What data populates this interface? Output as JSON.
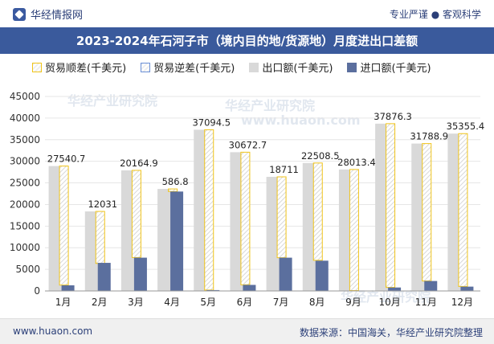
{
  "header": {
    "brand": "华经情报网",
    "slogan": "专业严谨 ● 客观科学"
  },
  "chart_data": {
    "type": "bar",
    "title": "2023-2024年石河子市（境内目的地/货源地）月度进出口差额",
    "categories": [
      "1月",
      "2月",
      "3月",
      "4月",
      "5月",
      "6月",
      "7月",
      "8月",
      "9月",
      "10月",
      "11月",
      "12月"
    ],
    "series": [
      {
        "name": "贸易顺差(千美元)",
        "values": [
          27540.7,
          12031,
          20164.9,
          586.8,
          37094.5,
          30672.7,
          18711,
          22508.5,
          28013.4,
          37876.3,
          31788.9,
          35355.4
        ]
      },
      {
        "name": "贸易逆差(千美元)",
        "values": [
          0,
          0,
          0,
          0,
          0,
          0,
          0,
          0,
          0,
          0,
          0,
          0
        ]
      },
      {
        "name": "出口额(千美元)",
        "values": [
          28900,
          18400,
          27900,
          23600,
          37300,
          32100,
          26400,
          29600,
          28100,
          38700,
          34100,
          36400
        ]
      },
      {
        "name": "进口额(千美元)",
        "values": [
          1300,
          6500,
          7700,
          23000,
          200,
          1400,
          7700,
          7000,
          100,
          800,
          2300,
          1000
        ]
      }
    ],
    "data_labels": [
      "27540.7",
      "12031",
      "20164.9",
      "586.8",
      "37094.5",
      "30672.7",
      "18711",
      "22508.5",
      "28013.4",
      "37876.3",
      "31788.9",
      "35355.4"
    ],
    "y_ticks": [
      "0",
      "5000",
      "10000",
      "15000",
      "20000",
      "25000",
      "30000",
      "35000",
      "40000",
      "45000"
    ],
    "ylim": [
      0,
      45000
    ],
    "grid": true,
    "legend_position": "top",
    "colors": {
      "surplus_border": "#f0c419",
      "deficit_border": "#6a8fd6",
      "export": "#d9d9d9",
      "import": "#5b6f9e",
      "title_bar": "#3a5a9c"
    }
  },
  "footer": {
    "url": "www.huaon.com",
    "source": "数据来源：中国海关，华经产业研究院整理"
  },
  "watermark": {
    "text": "华经产业研究院",
    "url": "www.huaon.com"
  }
}
